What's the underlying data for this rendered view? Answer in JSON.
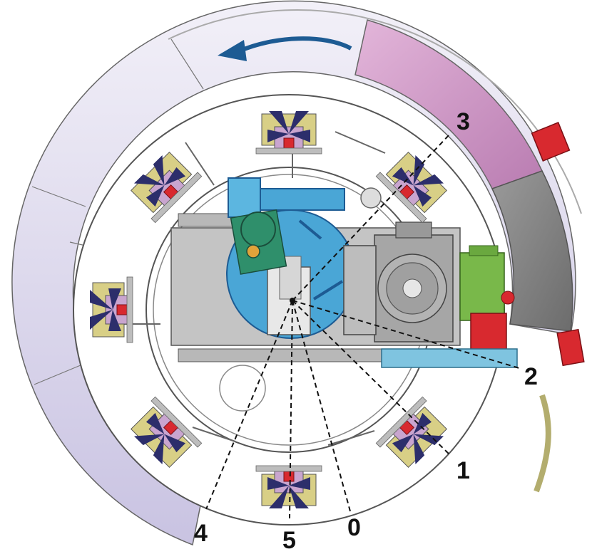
{
  "diagram": {
    "type": "rotary-table-top-view",
    "rotation_direction": "counter-clockwise",
    "colors": {
      "ring_lavender": "#ddd8ee",
      "ring_pink": "#c98fc0",
      "ring_gray": "#8c8c8c",
      "table_blue": "#4aa6d6",
      "gear_green": "#79b84a",
      "motor_red": "#d8292f",
      "arrow_blue": "#1d5b93",
      "station_purple": "#2c2e6b",
      "station_yellow": "#d8cf86"
    },
    "leader_labels": [
      {
        "id": "0",
        "text": "0"
      },
      {
        "id": "1",
        "text": "1"
      },
      {
        "id": "2",
        "text": "2"
      },
      {
        "id": "3",
        "text": "3"
      },
      {
        "id": "4",
        "text": "4"
      },
      {
        "id": "5",
        "text": "5"
      }
    ]
  }
}
